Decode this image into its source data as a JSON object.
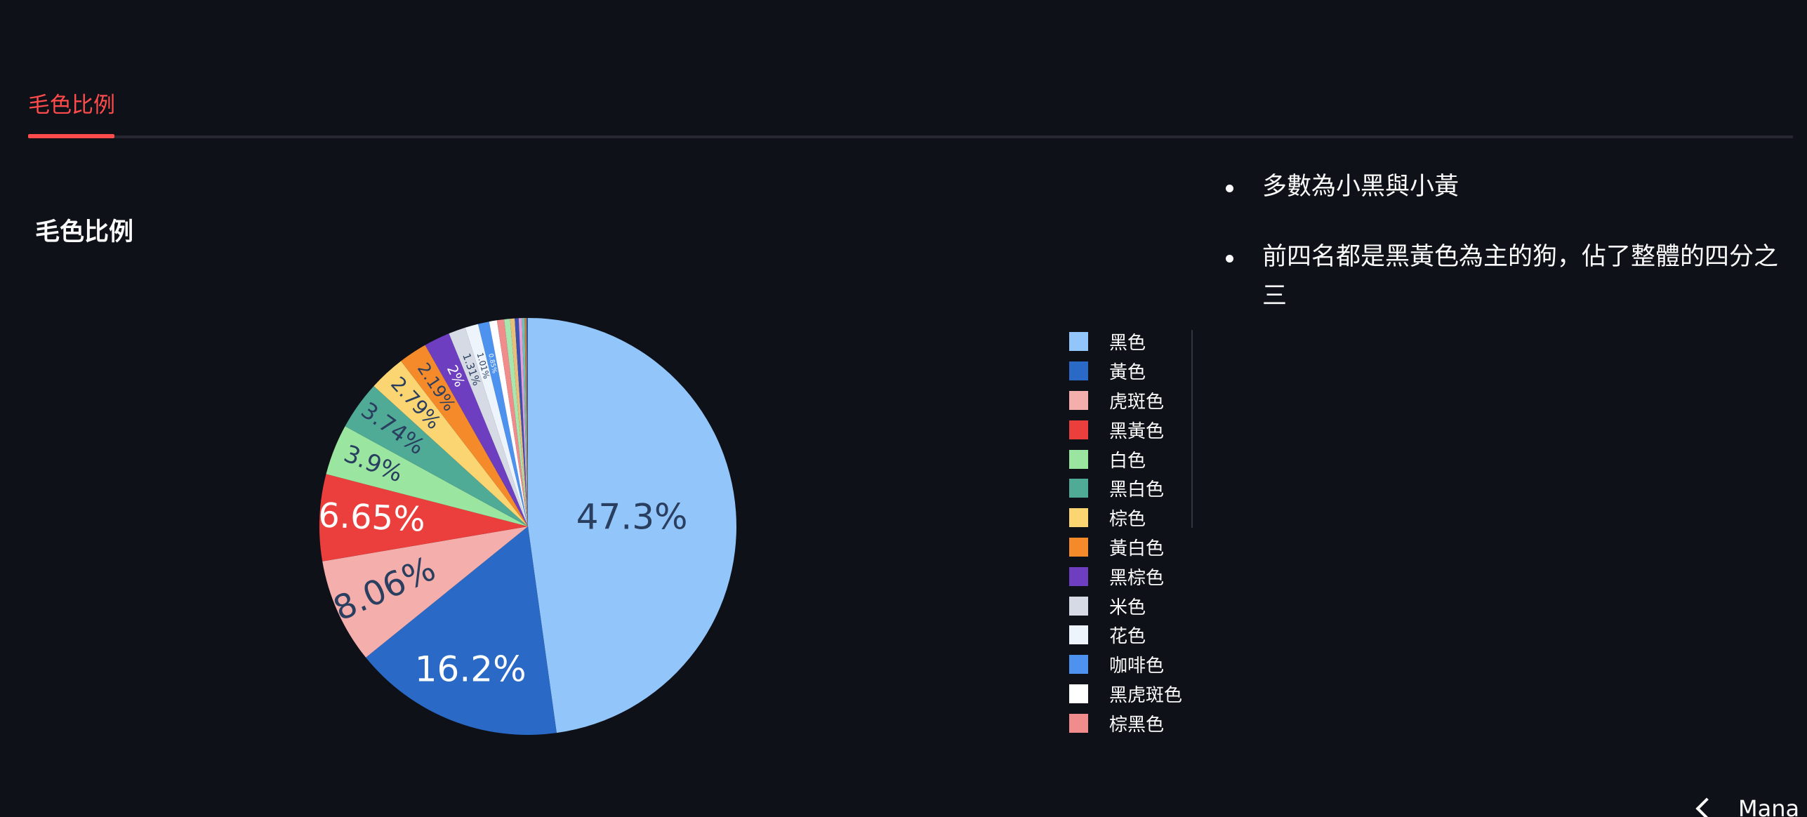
{
  "tabs": [
    {
      "label": "毛色比例",
      "active": true
    }
  ],
  "chart_title": "毛色比例",
  "chart_data": {
    "type": "pie",
    "title": "毛色比例",
    "slices": [
      {
        "label": "黑色",
        "value": 47.3,
        "color": "#92c5f9",
        "text": "47.3%"
      },
      {
        "label": "黃色",
        "value": 16.2,
        "color": "#2a6ac6",
        "text": "16.2%"
      },
      {
        "label": "虎斑色",
        "value": 8.06,
        "color": "#f4aeac",
        "text": "8.06%"
      },
      {
        "label": "黑黃色",
        "value": 6.65,
        "color": "#ea3f3c",
        "text": "6.65%"
      },
      {
        "label": "白色",
        "value": 3.9,
        "color": "#9ae6a0",
        "text": "3.9%"
      },
      {
        "label": "黑白色",
        "value": 3.74,
        "color": "#4faa96",
        "text": "3.74%"
      },
      {
        "label": "棕色",
        "value": 2.79,
        "color": "#fbd572",
        "text": "2.79%"
      },
      {
        "label": "黃白色",
        "value": 2.19,
        "color": "#f58a2b",
        "text": "2.19%"
      },
      {
        "label": "黑棕色",
        "value": 2.0,
        "color": "#6d3fc0",
        "text": "2%"
      },
      {
        "label": "米色",
        "value": 1.31,
        "color": "#d5dae5",
        "text": "1.31%"
      },
      {
        "label": "花色",
        "value": 1.01,
        "color": "#eef4fb",
        "text": "1.01%"
      },
      {
        "label": "咖啡色",
        "value": 0.85,
        "color": "#4c92ee",
        "text": "0.85%"
      },
      {
        "label": "黑虎斑色",
        "value": 0.6,
        "color": "#ffffff",
        "text": ""
      },
      {
        "label": "棕黑色",
        "value": 0.55,
        "color": "#f08c8c",
        "text": ""
      },
      {
        "label": "",
        "value": 0.45,
        "color": "#a8e6b0",
        "text": ""
      },
      {
        "label": "",
        "value": 0.35,
        "color": "#e8c07a",
        "text": ""
      },
      {
        "label": "",
        "value": 0.3,
        "color": "#3d4fb0",
        "text": ""
      },
      {
        "label": "",
        "value": 0.25,
        "color": "#e3a0d8",
        "text": ""
      },
      {
        "label": "",
        "value": 0.2,
        "color": "#6cc2b8",
        "text": ""
      },
      {
        "label": "",
        "value": 0.15,
        "color": "#c77b3b",
        "text": ""
      },
      {
        "label": "",
        "value": 0.1,
        "color": "#2d5aa0",
        "text": ""
      }
    ],
    "legend": [
      "黑色",
      "黃色",
      "虎斑色",
      "黑黃色",
      "白色",
      "黑白色",
      "棕色",
      "黃白色",
      "黑棕色",
      "米色",
      "花色",
      "咖啡色",
      "黑虎斑色",
      "棕黑色"
    ],
    "legend_position": "right"
  },
  "bullets": [
    "多數為小黑與小黃",
    "前四名都是黑黃色為主的狗，佔了整體的四分之三"
  ],
  "manage_label": "Mana",
  "colors": {
    "background": "#0e1117",
    "accent": "#ff4b4b",
    "text": "#fafafa"
  }
}
